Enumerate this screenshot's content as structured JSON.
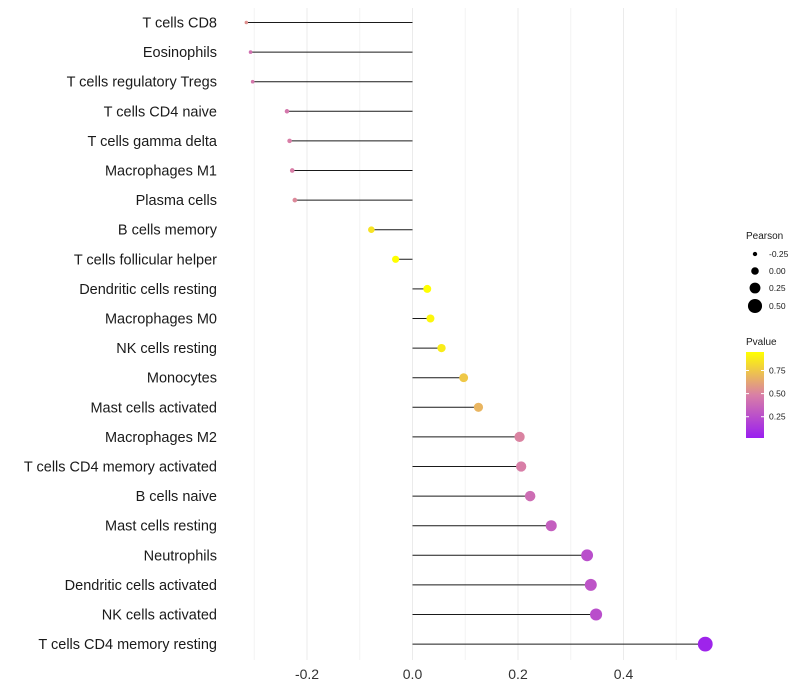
{
  "chart_data": {
    "type": "lollipop",
    "title": "",
    "xlabel": "",
    "ylabel": "",
    "xlim": [
      -0.3,
      0.55
    ],
    "xticks": [
      -0.2,
      0.0,
      0.2,
      0.4
    ],
    "xtick_labels": [
      "-0.2",
      "0.0",
      "0.2",
      "0.4"
    ],
    "grid": true,
    "categories": [
      "T cells CD8",
      "Eosinophils",
      "T cells regulatory  Tregs",
      "T cells CD4 naive",
      "T cells gamma delta",
      "Macrophages M1",
      "Plasma cells",
      "B cells memory",
      "T cells follicular helper",
      "Dendritic cells resting",
      "Macrophages M0",
      "NK cells resting",
      "Monocytes",
      "Mast cells activated",
      "Macrophages M2",
      "T cells CD4 memory activated",
      "B cells naive",
      "Mast cells resting",
      "Neutrophils",
      "Dendritic cells activated",
      "NK cells activated",
      "T cells CD4 memory resting"
    ],
    "values": [
      -0.315,
      -0.307,
      -0.303,
      -0.238,
      -0.233,
      -0.228,
      -0.223,
      -0.078,
      -0.032,
      0.028,
      0.034,
      0.055,
      0.097,
      0.125,
      0.203,
      0.206,
      0.223,
      0.263,
      0.331,
      0.338,
      0.348,
      0.555
    ],
    "pvalues": [
      0.55,
      0.42,
      0.45,
      0.45,
      0.48,
      0.48,
      0.52,
      0.85,
      0.95,
      0.95,
      0.92,
      0.88,
      0.75,
      0.68,
      0.5,
      0.48,
      0.4,
      0.33,
      0.25,
      0.28,
      0.25,
      0.05
    ],
    "size_legend": {
      "title": "Pearson",
      "entries": [
        -0.25,
        0.0,
        0.25,
        0.5
      ],
      "labels": [
        "-0.25",
        "0.00",
        "0.25",
        "0.50"
      ]
    },
    "color_legend": {
      "title": "Pvalue",
      "range": [
        0.02,
        0.95
      ],
      "ticks": [
        0.75,
        0.5,
        0.25
      ],
      "labels": [
        "0.75",
        "0.50",
        "0.25"
      ],
      "low_color": "#9a1ef0",
      "high_color": "#ffff00"
    }
  },
  "colors": {
    "stem": "#1a1a1a",
    "grid": "#ebebeb",
    "grid_minor": "#f4f4f4",
    "gradient_low": "#9a1ef0",
    "gradient_mid": "#d97fa6",
    "gradient_high": "#ffff00"
  }
}
